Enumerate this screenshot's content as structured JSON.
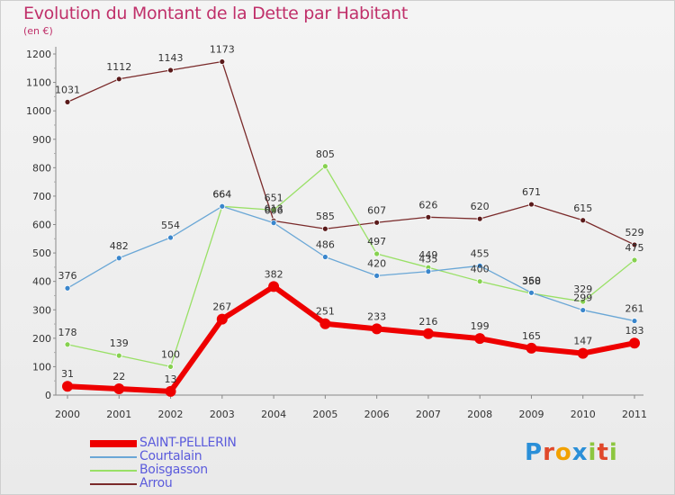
{
  "title": "Evolution du Montant de la Dette par Habitant",
  "subtitle": "(en €)",
  "logo": {
    "text": "Proxiti",
    "letters": [
      "P",
      "r",
      "o",
      "x",
      "i",
      "t",
      "i"
    ],
    "letter_colors": [
      "#2a8fd8",
      "#e0482a",
      "#f2a100",
      "#2a8fd8",
      "#8cc63f",
      "#e0482a",
      "#8cc63f"
    ]
  },
  "chart_data": {
    "type": "line",
    "x": [
      "2000",
      "2001",
      "2002",
      "2003",
      "2004",
      "2005",
      "2006",
      "2007",
      "2008",
      "2009",
      "2010",
      "2011"
    ],
    "yticks": [
      0,
      100,
      200,
      300,
      400,
      500,
      600,
      700,
      800,
      900,
      1000,
      1100,
      1200
    ],
    "ylim": [
      0,
      1230
    ],
    "grid": false,
    "legend_position": "bottom-left",
    "series": [
      {
        "name": "Arrou",
        "color": "#7a2a2a",
        "marker_color": "#5a1a1a",
        "line_width": 1.3,
        "marker_radius": 3,
        "values": [
          1031,
          1112,
          1143,
          1173,
          613,
          585,
          607,
          626,
          620,
          671,
          615,
          529
        ]
      },
      {
        "name": "Boisgasson",
        "color": "#99e066",
        "marker_color": "#86d14f",
        "line_width": 1.3,
        "marker_radius": 3,
        "values": [
          178,
          139,
          100,
          664,
          651,
          805,
          497,
          449,
          400,
          358,
          329,
          475
        ]
      },
      {
        "name": "Courtalain",
        "color": "#6aa7d6",
        "marker_color": "#3a86cc",
        "line_width": 1.3,
        "marker_radius": 3,
        "values": [
          376,
          482,
          554,
          664,
          606,
          486,
          420,
          435,
          455,
          360,
          299,
          261
        ]
      },
      {
        "name": "SAINT-PELLERIN",
        "color": "#ee0000",
        "marker_color": "#ee0000",
        "line_width": 6,
        "marker_radius": 6,
        "values": [
          31,
          22,
          13,
          267,
          382,
          251,
          233,
          216,
          199,
          165,
          147,
          183
        ]
      }
    ],
    "point_labels": [
      [
        {
          "i": 0,
          "text": "1031"
        },
        {
          "i": 1,
          "text": "1112"
        },
        {
          "i": 2,
          "text": "1143"
        },
        {
          "i": 3,
          "text": "1173"
        },
        {
          "i": 4,
          "text": "613"
        },
        {
          "i": 5,
          "text": "585"
        },
        {
          "i": 6,
          "text": "607"
        },
        {
          "i": 7,
          "text": "626"
        },
        {
          "i": 8,
          "text": "620"
        },
        {
          "i": 9,
          "text": "671"
        },
        {
          "i": 10,
          "text": "615"
        },
        {
          "i": 11,
          "text": "529"
        }
      ],
      [
        {
          "i": 0,
          "text": "178"
        },
        {
          "i": 1,
          "text": "139"
        },
        {
          "i": 2,
          "text": "100"
        },
        {
          "i": 3,
          "text": "664"
        },
        {
          "i": 4,
          "text": "651"
        },
        {
          "i": 5,
          "text": "805"
        },
        {
          "i": 6,
          "text": "497"
        },
        {
          "i": 7,
          "text": "449"
        },
        {
          "i": 8,
          "text": "400"
        },
        {
          "i": 9,
          "text": "358"
        },
        {
          "i": 10,
          "text": "329"
        },
        {
          "i": 11,
          "text": "475"
        }
      ],
      [
        {
          "i": 0,
          "text": "376"
        },
        {
          "i": 1,
          "text": "482"
        },
        {
          "i": 2,
          "text": "554"
        },
        {
          "i": 3,
          "text": "664"
        },
        {
          "i": 4,
          "text": "606"
        },
        {
          "i": 5,
          "text": "486"
        },
        {
          "i": 6,
          "text": "420"
        },
        {
          "i": 7,
          "text": "435"
        },
        {
          "i": 8,
          "text": "455"
        },
        {
          "i": 9,
          "text": "360"
        },
        {
          "i": 10,
          "text": "299"
        },
        {
          "i": 11,
          "text": "261"
        }
      ],
      [
        {
          "i": 0,
          "text": "31"
        },
        {
          "i": 1,
          "text": "22"
        },
        {
          "i": 2,
          "text": "13"
        },
        {
          "i": 3,
          "text": "267"
        },
        {
          "i": 4,
          "text": "382"
        },
        {
          "i": 5,
          "text": "251"
        },
        {
          "i": 6,
          "text": "233"
        },
        {
          "i": 7,
          "text": "216"
        },
        {
          "i": 8,
          "text": "199"
        },
        {
          "i": 9,
          "text": "165"
        },
        {
          "i": 10,
          "text": "147"
        },
        {
          "i": 11,
          "text": "183"
        }
      ]
    ],
    "legend": [
      "SAINT-PELLERIN",
      "Courtalain",
      "Boisgasson",
      "Arrou"
    ]
  }
}
